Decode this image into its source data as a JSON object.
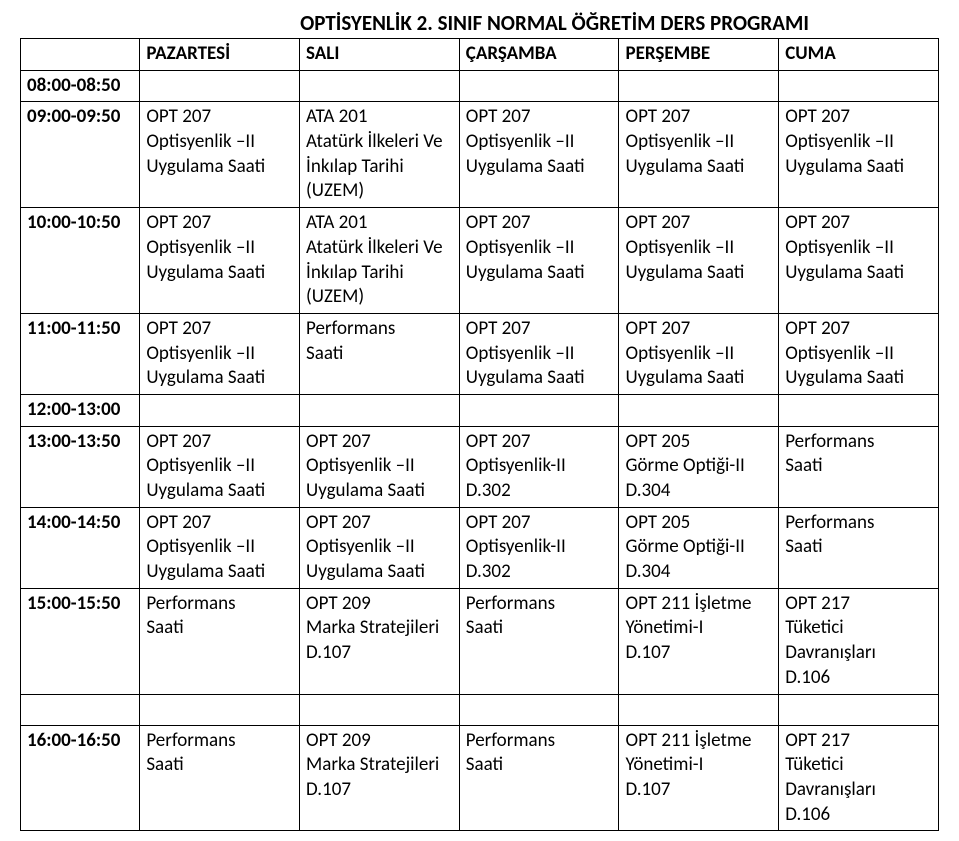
{
  "title": "OPTİSYENLİK  2. SINIF  NORMAL  ÖĞRETİM DERS PROGRAMI",
  "days": [
    "PAZARTESİ",
    "SALI",
    "ÇARŞAMBA",
    "PERŞEMBE",
    "CUMA"
  ],
  "times": {
    "r0": "08:00-08:50",
    "r1": "09:00-09:50",
    "r2": "10:00-10:50",
    "r3": "11:00-11:50",
    "r4": "12:00-13:00",
    "r5": "13:00-13:50",
    "r6": "14:00-14:50",
    "r7": "15:00-15:50",
    "r8": "16:00-16:50"
  },
  "cells": {
    "r1": {
      "mon": [
        "OPT 207",
        "Optisyenlik –II",
        "Uygulama Saati"
      ],
      "tue": [
        "ATA 201",
        "Atatürk İlkeleri Ve",
        "İnkılap Tarihi",
        "(UZEM)"
      ],
      "wed": [
        "OPT 207",
        "Optisyenlik –II",
        "Uygulama Saati"
      ],
      "thu": [
        "OPT 207",
        "Optisyenlik –II",
        "Uygulama Saati"
      ],
      "fri": [
        "OPT 207",
        "Optisyenlik –II",
        "Uygulama Saati"
      ]
    },
    "r2": {
      "mon": [
        "OPT 207",
        "Optisyenlik –II",
        "Uygulama Saati"
      ],
      "tue": [
        "ATA 201",
        "Atatürk İlkeleri Ve",
        "İnkılap Tarihi",
        "(UZEM)"
      ],
      "wed": [
        "OPT 207",
        "Optisyenlik –II",
        "Uygulama Saati"
      ],
      "thu": [
        "OPT 207",
        "Optisyenlik –II",
        "Uygulama Saati"
      ],
      "fri": [
        "OPT 207",
        "Optisyenlik –II",
        "Uygulama Saati"
      ]
    },
    "r3": {
      "mon": [
        "OPT 207",
        "Optisyenlik –II",
        "Uygulama Saati"
      ],
      "tue": [
        "Performans",
        " Saati"
      ],
      "wed": [
        "OPT 207",
        "Optisyenlik –II",
        "Uygulama Saati"
      ],
      "thu": [
        "OPT 207",
        "Optisyenlik –II",
        "Uygulama Saati"
      ],
      "fri": [
        "OPT 207",
        "Optisyenlik –II",
        "Uygulama Saati"
      ]
    },
    "r5": {
      "mon": [
        "OPT 207",
        "Optisyenlik –II",
        "Uygulama Saati"
      ],
      "tue": [
        "OPT 207",
        "Optisyenlik –II",
        "Uygulama Saati"
      ],
      "wed": [
        "OPT 207",
        "Optisyenlik-II",
        "D.302"
      ],
      "thu": [
        "OPT 205",
        "Görme Optiği-II",
        "D.304"
      ],
      "fri": [
        "Performans",
        " Saati"
      ]
    },
    "r6": {
      "mon": [
        "OPT 207",
        "Optisyenlik –II",
        "Uygulama Saati"
      ],
      "tue": [
        "OPT 207",
        "Optisyenlik –II",
        "Uygulama Saati"
      ],
      "wed": [
        "OPT 207",
        "Optisyenlik-II",
        "D.302"
      ],
      "thu": [
        "OPT 205",
        "Görme Optiği-II",
        "D.304"
      ],
      "fri": [
        "Performans",
        " Saati"
      ]
    },
    "r7": {
      "mon": [
        "Performans",
        " Saati"
      ],
      "tue": [
        "OPT 209",
        "Marka Stratejileri",
        "D.107"
      ],
      "wed": [
        "Performans",
        " Saati"
      ],
      "thu": [
        "OPT 211 İşletme",
        "Yönetimi-I",
        "D.107"
      ],
      "fri": [
        "OPT 217",
        "Tüketici",
        "Davranışları",
        "D.106"
      ]
    },
    "r8": {
      "mon": [
        "Performans",
        " Saati"
      ],
      "tue": [
        "OPT 209",
        "Marka Stratejileri",
        "D.107"
      ],
      "wed": [
        "Performans",
        " Saati"
      ],
      "thu": [
        "OPT 211 İşletme",
        "Yönetimi-I",
        "D.107"
      ],
      "fri": [
        "OPT 217",
        "Tüketici",
        "Davranışları",
        "D.106"
      ]
    }
  }
}
